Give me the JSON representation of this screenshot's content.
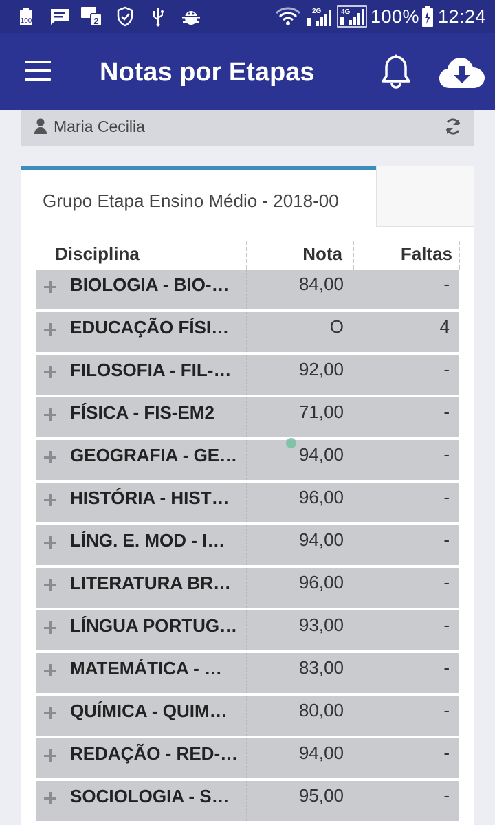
{
  "status_bar": {
    "battery_badge": "100",
    "sim_badge": "2",
    "signal_2g": "2G",
    "signal_4g": "4G",
    "battery_percent": "100%",
    "time": "12:24"
  },
  "app_bar": {
    "title": "Notas por Etapas",
    "icons": [
      "menu-icon",
      "bell-icon",
      "cloud-download-icon"
    ]
  },
  "user_bar": {
    "name": "Maria Cecilia",
    "icons": [
      "user-icon",
      "refresh-icon"
    ]
  },
  "tab": {
    "label": "Grupo Etapa Ensino Médio - 2018-00"
  },
  "table": {
    "headers": {
      "disciplina": "Disciplina",
      "nota": "Nota",
      "faltas": "Faltas"
    },
    "rows": [
      {
        "disciplina": "BIOLOGIA - BIO-…",
        "nota": "84,00",
        "faltas": "-"
      },
      {
        "disciplina": "EDUCAÇÃO FÍSI…",
        "nota": "O",
        "faltas": "4"
      },
      {
        "disciplina": "FILOSOFIA - FIL-…",
        "nota": "92,00",
        "faltas": "-"
      },
      {
        "disciplina": "FÍSICA - FIS-EM2",
        "nota": "71,00",
        "faltas": "-"
      },
      {
        "disciplina": "GEOGRAFIA - GE…",
        "nota": "94,00",
        "faltas": "-"
      },
      {
        "disciplina": "HISTÓRIA - HIST…",
        "nota": "96,00",
        "faltas": "-"
      },
      {
        "disciplina": "LÍNG. E. MOD - I…",
        "nota": "94,00",
        "faltas": "-"
      },
      {
        "disciplina": "LITERATURA BR…",
        "nota": "96,00",
        "faltas": "-"
      },
      {
        "disciplina": "LÍNGUA PORTUG…",
        "nota": "93,00",
        "faltas": "-"
      },
      {
        "disciplina": "MATEMÁTICA - …",
        "nota": "83,00",
        "faltas": "-"
      },
      {
        "disciplina": "QUÍMICA - QUIM…",
        "nota": "80,00",
        "faltas": "-"
      },
      {
        "disciplina": "REDAÇÃO - RED-…",
        "nota": "94,00",
        "faltas": "-"
      },
      {
        "disciplina": "SOCIOLOGIA - S…",
        "nota": "95,00",
        "faltas": "-"
      }
    ]
  },
  "colors": {
    "status_bar": "#262e86",
    "app_bar": "#2b3393",
    "tab_accent": "#3c8dbc",
    "row_bg": "#c9cbcf"
  }
}
